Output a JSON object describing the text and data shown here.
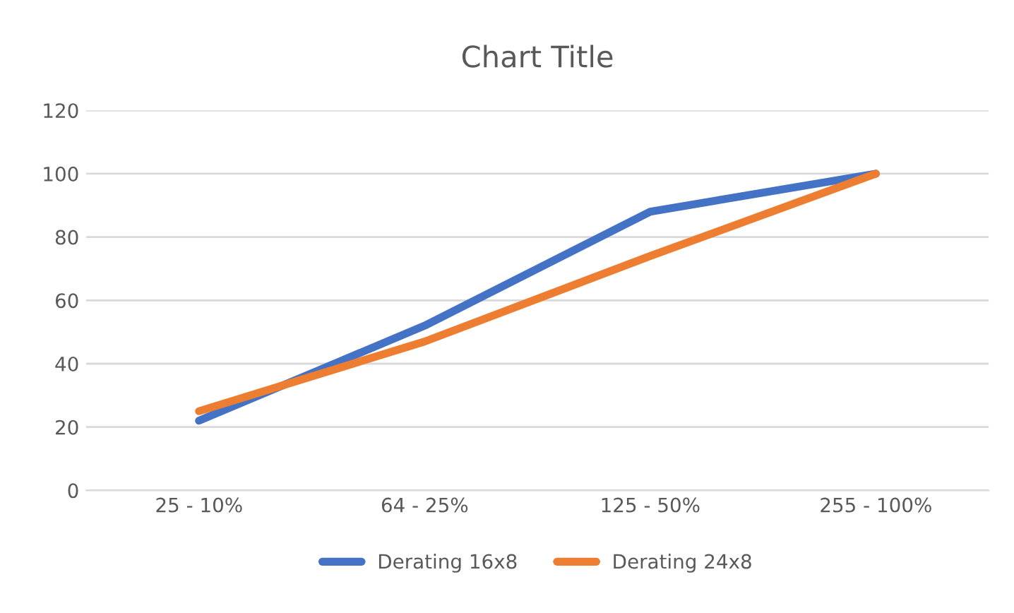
{
  "chart_data": {
    "type": "line",
    "title": "Chart Title",
    "categories": [
      "25 - 10%",
      "64 - 25%",
      "125 - 50%",
      "255 - 100%"
    ],
    "series": [
      {
        "name": "Derating 16x8",
        "color": "#4472c4",
        "values": [
          22,
          52,
          88,
          100
        ]
      },
      {
        "name": "Derating 24x8",
        "color": "#ed7d31",
        "values": [
          25,
          47,
          74,
          100
        ]
      }
    ],
    "ylim": [
      0,
      120
    ],
    "yticks": [
      0,
      20,
      40,
      60,
      80,
      100,
      120
    ],
    "grid": "y",
    "legend": "bottom",
    "marker": "none",
    "line_style": "solid"
  }
}
